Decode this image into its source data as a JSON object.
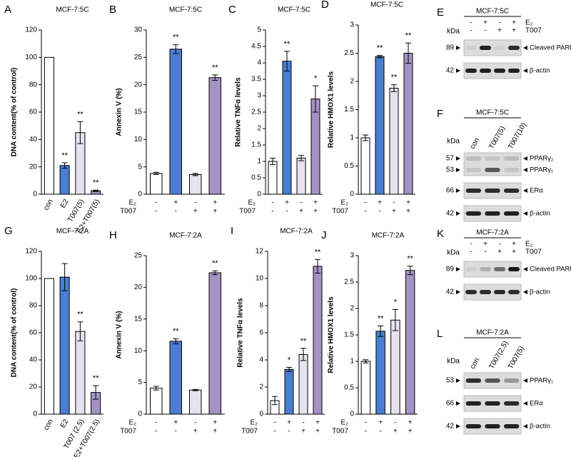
{
  "chart_data": [
    {
      "type": "bar",
      "panel": "A",
      "title": "MCF-7:5C",
      "y_label": "DNA content(% of control)",
      "categories": [
        "con",
        "E2",
        "T007(5)",
        "E2+T007(5)"
      ],
      "values": [
        100,
        21,
        45,
        2.5
      ],
      "errors": [
        null,
        2,
        8,
        0.5
      ],
      "annotations": [
        null,
        "**",
        "**",
        "**"
      ],
      "colors": [
        "#ffffff",
        "#4a7fcf",
        "#e6e2ef",
        "#a592c4"
      ],
      "ylim": [
        0,
        120
      ],
      "yticks": [
        0,
        20,
        40,
        60,
        80,
        100,
        120
      ]
    },
    {
      "type": "bar",
      "panel": "B",
      "title": "MCF-7:5C",
      "y_label": "Annexin V (%)",
      "conditions": [
        {
          "name": "E₂",
          "signs": [
            "-",
            "+",
            "-",
            "+"
          ]
        },
        {
          "name": "T007",
          "signs": [
            "-",
            "-",
            "+",
            "+"
          ]
        }
      ],
      "values": [
        3.8,
        26.5,
        3.6,
        21.3
      ],
      "errors": [
        0.2,
        0.8,
        0.2,
        0.5
      ],
      "annotations": [
        null,
        "**",
        null,
        "**"
      ],
      "colors": [
        "#ffffff",
        "#4a7fcf",
        "#e6e2ef",
        "#a592c4"
      ],
      "ylim": [
        0,
        30
      ],
      "yticks": [
        0,
        5,
        10,
        15,
        20,
        25,
        30
      ]
    },
    {
      "type": "bar",
      "panel": "C",
      "title": "MCF-7:5C",
      "y_label": "Relative TNFα levels",
      "conditions": [
        {
          "name": "E₂",
          "signs": [
            "-",
            "+",
            "-",
            "+"
          ]
        },
        {
          "name": "T007",
          "signs": [
            "-",
            "-",
            "+",
            "+"
          ]
        }
      ],
      "values": [
        1,
        4.05,
        1.1,
        2.9
      ],
      "errors": [
        0.1,
        0.3,
        0.08,
        0.4
      ],
      "annotations": [
        null,
        "**",
        null,
        "*"
      ],
      "colors": [
        "#ffffff",
        "#4a7fcf",
        "#e6e2ef",
        "#a592c4"
      ],
      "ylim": [
        0,
        5
      ],
      "yticks": [
        0,
        0.5,
        1,
        1.5,
        2,
        2.5,
        3,
        3.5,
        4,
        4.5,
        5
      ]
    },
    {
      "type": "bar",
      "panel": "D",
      "title": "MCF-7:5C",
      "y_label": "Relative HMOX1 levels",
      "conditions": [
        {
          "name": "E₂",
          "signs": [
            "-",
            "+",
            "-",
            "+"
          ]
        },
        {
          "name": "T007",
          "signs": [
            "-",
            "-",
            "+",
            "+"
          ]
        }
      ],
      "values": [
        1,
        2.44,
        1.88,
        2.5
      ],
      "errors": [
        0.05,
        0.02,
        0.06,
        0.18
      ],
      "annotations": [
        null,
        "**",
        "**",
        "**"
      ],
      "colors": [
        "#ffffff",
        "#4a7fcf",
        "#e6e2ef",
        "#a592c4"
      ],
      "ylim": [
        0,
        3
      ],
      "yticks": [
        0,
        0.5,
        1,
        1.5,
        2,
        2.5,
        3
      ]
    },
    {
      "type": "bar",
      "panel": "G",
      "title": "MCF-7:2A",
      "y_label": "DNA content(% of control)",
      "categories": [
        "con",
        "E2",
        "T007 (2.5)",
        "E2+T007(2.5)"
      ],
      "values": [
        100,
        101,
        61,
        16
      ],
      "errors": [
        null,
        10,
        7,
        5
      ],
      "annotations": [
        null,
        null,
        "**",
        "**"
      ],
      "colors": [
        "#ffffff",
        "#4a7fcf",
        "#e6e2ef",
        "#a592c4"
      ],
      "ylim": [
        0,
        120
      ],
      "yticks": [
        0,
        20,
        40,
        60,
        80,
        100,
        120
      ]
    },
    {
      "type": "bar",
      "panel": "H",
      "title": "MCF-7:2A",
      "y_label": "Annexin V (%)",
      "conditions": [
        {
          "name": "E₂",
          "signs": [
            "-",
            "+",
            "-",
            "+"
          ]
        },
        {
          "name": "T007",
          "signs": [
            "-",
            "-",
            "+",
            "+"
          ]
        }
      ],
      "values": [
        4.1,
        11.5,
        3.8,
        22.3
      ],
      "errors": [
        0.3,
        0.4,
        0.1,
        0.3
      ],
      "annotations": [
        null,
        "**",
        null,
        "**"
      ],
      "colors": [
        "#ffffff",
        "#4a7fcf",
        "#e6e2ef",
        "#a592c4"
      ],
      "ylim": [
        0,
        25
      ],
      "yticks": [
        0,
        5,
        10,
        15,
        20,
        25
      ]
    },
    {
      "type": "bar",
      "panel": "I",
      "title": "MCF-7:2A",
      "y_label": "Relative TNFα levels",
      "conditions": [
        {
          "name": "E₂",
          "signs": [
            "-",
            "+",
            "-",
            "+"
          ]
        },
        {
          "name": "T007",
          "signs": [
            "-",
            "-",
            "+",
            "+"
          ]
        }
      ],
      "values": [
        1,
        3.3,
        4.4,
        10.9
      ],
      "errors": [
        0.3,
        0.15,
        0.45,
        0.5
      ],
      "annotations": [
        null,
        "*",
        "**",
        "**"
      ],
      "colors": [
        "#ffffff",
        "#4a7fcf",
        "#e6e2ef",
        "#a592c4"
      ],
      "ylim": [
        0,
        12
      ],
      "yticks": [
        0,
        2,
        4,
        6,
        8,
        10,
        12
      ]
    },
    {
      "type": "bar",
      "panel": "J",
      "title": "MCF-7:2A",
      "y_label": "Relative HMOX1 levels",
      "conditions": [
        {
          "name": "E₂",
          "signs": [
            "-",
            "+",
            "-",
            "+"
          ]
        },
        {
          "name": "T007",
          "signs": [
            "-",
            "-",
            "+",
            "+"
          ]
        }
      ],
      "values": [
        1,
        1.57,
        1.78,
        2.72
      ],
      "errors": [
        0.03,
        0.1,
        0.2,
        0.08
      ],
      "annotations": [
        null,
        "**",
        "*",
        "**"
      ],
      "colors": [
        "#ffffff",
        "#4a7fcf",
        "#e6e2ef",
        "#a592c4"
      ],
      "ylim": [
        0,
        3
      ],
      "yticks": [
        0,
        0.5,
        1,
        1.5,
        2,
        2.5,
        3
      ]
    }
  ],
  "blots": [
    {
      "panel": "E",
      "title": "MCF-7:5C",
      "unit": "kDa",
      "conditions": [
        {
          "name": "E₂",
          "signs": [
            "-",
            "+",
            "-",
            "+"
          ]
        },
        {
          "name": "T007",
          "signs": [
            "-",
            "-",
            "+",
            "+"
          ]
        }
      ],
      "rows": [
        {
          "markers": [
            {
              "kda": "89",
              "label": "Cleaved PARP"
            }
          ]
        },
        {
          "markers": [
            {
              "kda": "42",
              "label": "β-actin"
            }
          ]
        }
      ]
    },
    {
      "panel": "F",
      "title": "MCF-7:5C",
      "unit": "kDa",
      "lanes": [
        "con",
        "T007(5)",
        "T007(10)"
      ],
      "rows": [
        {
          "markers": [
            {
              "kda": "57",
              "label": "PPARγ₂"
            },
            {
              "kda": "53",
              "label": "PPARγ₁"
            }
          ]
        },
        {
          "markers": [
            {
              "kda": "66",
              "label": "ERα"
            }
          ]
        },
        {
          "markers": [
            {
              "kda": "42",
              "label": "β-actin"
            }
          ]
        }
      ]
    },
    {
      "panel": "K",
      "title": "MCF-7:2A",
      "unit": "kDa",
      "conditions": [
        {
          "name": "E₂",
          "signs": [
            "-",
            "+",
            "-",
            "+"
          ]
        },
        {
          "name": "T007",
          "signs": [
            "-",
            "-",
            "+",
            "+"
          ]
        }
      ],
      "rows": [
        {
          "markers": [
            {
              "kda": "89",
              "label": "Cleaved PARP"
            }
          ]
        },
        {
          "markers": [
            {
              "kda": "42",
              "label": "β-actin"
            }
          ]
        }
      ]
    },
    {
      "panel": "L",
      "title": "MCF-7:2A",
      "unit": "kDa",
      "lanes": [
        "con",
        "T007(2.5)",
        "T007(5)"
      ],
      "rows": [
        {
          "markers": [
            {
              "kda": "53",
              "label": "PPARγ₁"
            }
          ]
        },
        {
          "markers": [
            {
              "kda": "66",
              "label": "ERα"
            }
          ]
        },
        {
          "markers": [
            {
              "kda": "42",
              "label": "β-actin"
            }
          ]
        }
      ]
    }
  ]
}
